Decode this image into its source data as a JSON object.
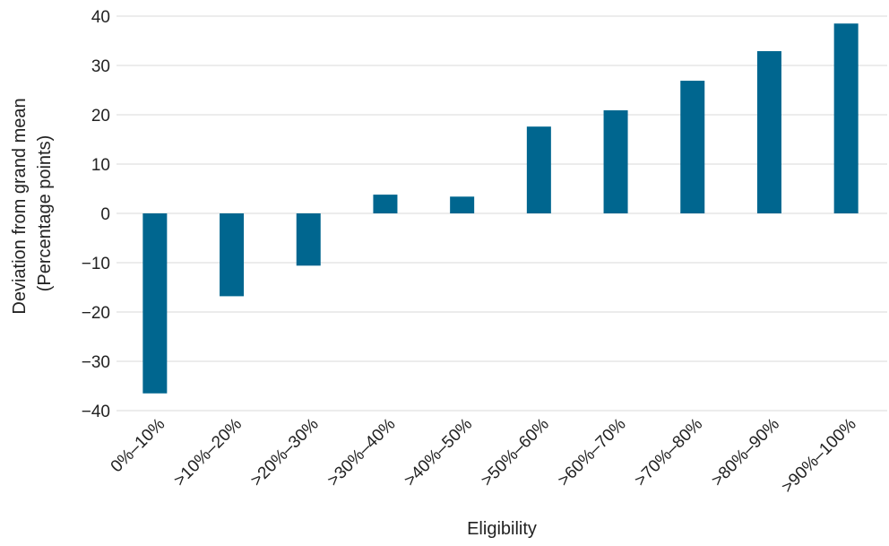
{
  "chart_data": {
    "type": "bar",
    "categories": [
      "0%–10%",
      ">10%–20%",
      ">20%–30%",
      ">30%–40%",
      ">40%–50%",
      ">50%–60%",
      ">60%–70%",
      ">70%–80%",
      ">80%–90%",
      ">90%–100%"
    ],
    "values": [
      -36.5,
      -16.8,
      -10.6,
      3.8,
      3.4,
      17.6,
      20.9,
      26.9,
      32.9,
      38.5
    ],
    "xlabel": "Eligibility",
    "ylabel_lines": [
      "Deviation from grand mean",
      "(Percentage points)"
    ],
    "ylim": [
      -40,
      40
    ],
    "yticks": [
      40,
      30,
      20,
      10,
      0,
      -10,
      -20,
      -30,
      -40
    ],
    "ytick_labels": [
      "40",
      "30",
      "20",
      "10",
      "0",
      "−10",
      "−20",
      "−30",
      "−40"
    ],
    "grid": true,
    "colors": {
      "bar": "#00668f",
      "grid": "#d9d9d9"
    }
  }
}
